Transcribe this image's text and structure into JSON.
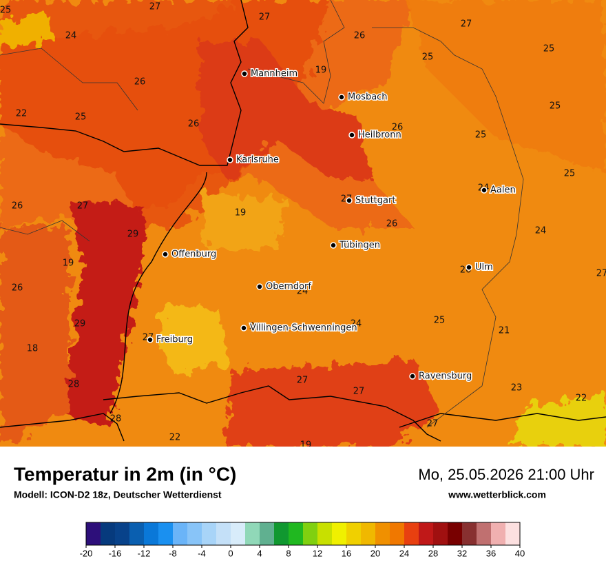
{
  "header": {
    "title": "Temperatur in 2m (in °C)",
    "model": "Modell: ICON-D2 18z, Deutscher Wetterdienst",
    "date": "Mo, 25.05.2026 21:00 Uhr",
    "website": "www.wetterblick.com"
  },
  "cities": [
    "Mannheim",
    "Mosbach",
    "Heilbronn",
    "Karlsruhe",
    "Stuttgart",
    "Aalen",
    "Tübingen",
    "Offenburg",
    "Ulm",
    "Oberndorf",
    "Villingen-Schwenningen",
    "Freiburg",
    "Ravensburg"
  ],
  "temperatures": [
    25,
    27,
    27,
    24,
    26,
    27,
    25,
    25,
    19,
    26,
    22,
    25,
    25,
    26,
    26,
    25,
    25,
    24,
    26,
    27,
    19,
    27,
    26,
    29,
    24,
    19,
    27,
    26,
    26,
    24,
    24,
    24,
    25,
    29,
    21,
    27,
    18,
    28,
    27,
    27,
    23,
    22,
    28,
    27,
    22,
    19
  ],
  "colorbar": {
    "lim": [
      -20,
      40
    ],
    "ticks": [
      -20,
      -16,
      -12,
      -8,
      -4,
      0,
      4,
      8,
      12,
      16,
      20,
      24,
      28,
      32,
      36,
      40
    ],
    "colors": [
      "#2d0f7a",
      "#063a7d",
      "#08428a",
      "#0a5fb0",
      "#0a78d8",
      "#1a90f0",
      "#6ab4f8",
      "#88c4f8",
      "#a8d4f8",
      "#c4e0f8",
      "#d8ecfa",
      "#90d8b8",
      "#60b090",
      "#109830",
      "#20b820",
      "#80d010",
      "#c8e000",
      "#f0f000",
      "#f0d000",
      "#f0b800",
      "#f09000",
      "#f07800",
      "#e84010",
      "#c01818",
      "#a01010",
      "#780000",
      "#883030",
      "#c07070",
      "#f0b0b0",
      "#fce0e0"
    ]
  }
}
